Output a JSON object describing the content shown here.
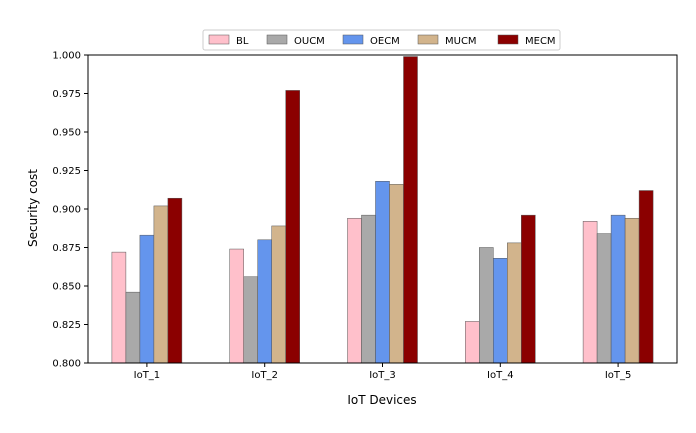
{
  "chart_data": {
    "type": "bar",
    "title": "",
    "xlabel": "IoT Devices",
    "ylabel": "Security cost",
    "ylim": [
      0.8,
      1.0
    ],
    "yticks": [
      "0.800",
      "0.825",
      "0.850",
      "0.875",
      "0.900",
      "0.925",
      "0.950",
      "0.975",
      "1.000"
    ],
    "categories": [
      "IoT_1",
      "IoT_2",
      "IoT_3",
      "IoT_4",
      "IoT_5"
    ],
    "legend_position": "top-center",
    "grid": false,
    "series": [
      {
        "name": "BL",
        "color": "#ffc0cb",
        "values": [
          0.872,
          0.874,
          0.894,
          0.827,
          0.892
        ]
      },
      {
        "name": "OUCM",
        "color": "#a9a9a9",
        "values": [
          0.846,
          0.856,
          0.896,
          0.875,
          0.884
        ]
      },
      {
        "name": "OECM",
        "color": "#6495ed",
        "values": [
          0.883,
          0.88,
          0.918,
          0.868,
          0.896
        ]
      },
      {
        "name": "MUCM",
        "color": "#d2b48c",
        "values": [
          0.902,
          0.889,
          0.916,
          0.878,
          0.894
        ]
      },
      {
        "name": "MECM",
        "color": "#8b0000",
        "values": [
          0.907,
          0.977,
          0.999,
          0.896,
          0.912
        ]
      }
    ]
  }
}
